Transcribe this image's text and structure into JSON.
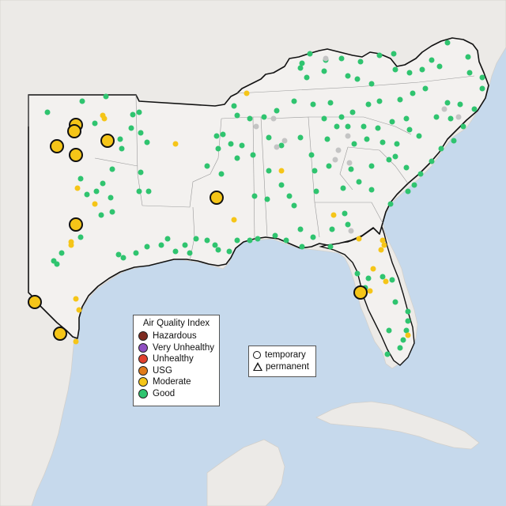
{
  "legend": {
    "aqi_title": "Air Quality Index",
    "categories": [
      {
        "label": "Hazardous",
        "color": "#7e2b21"
      },
      {
        "label": "Very Unhealthy",
        "color": "#8f4fc2"
      },
      {
        "label": "Unhealthy",
        "color": "#e2402d"
      },
      {
        "label": "USG",
        "color": "#e07b1a"
      },
      {
        "label": "Moderate",
        "color": "#f5c518"
      },
      {
        "label": "Good",
        "color": "#2fc46f"
      }
    ],
    "shape_temporary": "temporary",
    "shape_permanent": "permanent"
  },
  "colors": {
    "water": "#c6d9ec",
    "land": "#eceae7",
    "highlight_land": "#f3f1ef",
    "no_data": "#c4c4c4"
  },
  "monitors": {
    "temporary_moderate_count": 13
  }
}
